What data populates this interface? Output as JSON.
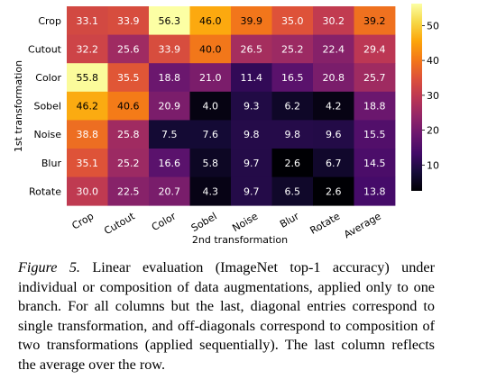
{
  "chart_data": {
    "type": "heatmap",
    "row_labels": [
      "Crop",
      "Cutout",
      "Color",
      "Sobel",
      "Noise",
      "Blur",
      "Rotate"
    ],
    "col_labels": [
      "Crop",
      "Cutout",
      "Color",
      "Sobel",
      "Noise",
      "Blur",
      "Rotate",
      "Average"
    ],
    "values": [
      [
        33.1,
        33.9,
        56.3,
        46.0,
        39.9,
        35.0,
        30.2,
        39.2
      ],
      [
        32.2,
        25.6,
        33.9,
        40.0,
        26.5,
        25.2,
        22.4,
        29.4
      ],
      [
        55.8,
        35.5,
        18.8,
        21.0,
        11.4,
        16.5,
        20.8,
        25.7
      ],
      [
        46.2,
        40.6,
        20.9,
        4.0,
        9.3,
        6.2,
        4.2,
        18.8
      ],
      [
        38.8,
        25.8,
        7.5,
        7.6,
        9.8,
        9.8,
        9.6,
        15.5
      ],
      [
        35.1,
        25.2,
        16.6,
        5.8,
        9.7,
        2.6,
        6.7,
        14.5
      ],
      [
        30.0,
        22.5,
        20.7,
        4.3,
        9.7,
        6.5,
        2.6,
        13.8
      ]
    ],
    "xlabel": "2nd transformation",
    "ylabel": "1st transformation",
    "colormap": "inferno",
    "color_range": [
      2.6,
      56.3
    ],
    "colorbar_ticks": [
      10,
      20,
      30,
      40,
      50
    ],
    "colorbar_tick_labels": [
      "10",
      "20",
      "30",
      "40",
      "50"
    ]
  },
  "caption": {
    "label": "Figure 5.",
    "text": " Linear evaluation (ImageNet top-1 accuracy) under individual or composition of data augmentations, applied only to one branch. For all columns but the last, diagonal entries correspond to single transformation, and off-diagonals correspond to composition of two transformations (applied sequentially). The last column reflects the average over the row."
  }
}
